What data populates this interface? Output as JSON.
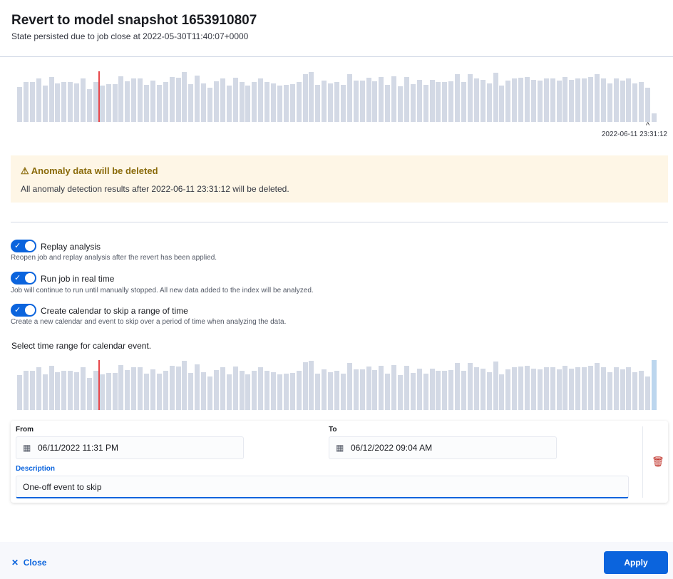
{
  "header": {
    "title": "Revert to model snapshot 1653910807",
    "subtitle": "State persisted due to job close at 2022-05-30T11:40:07+0000"
  },
  "chart": {
    "end_label": "2022-06-11 23:31:12",
    "bar_color": "#d3d9e5",
    "marker_color": "#e7474b",
    "selection_color": "#bcd6ee",
    "values": [
      71,
      80,
      80,
      87,
      73,
      91,
      78,
      80,
      80,
      78,
      87,
      66,
      80,
      73,
      76,
      76,
      92,
      82,
      87,
      87,
      75,
      83,
      75,
      80,
      91,
      89,
      100,
      76,
      94,
      78,
      69,
      82,
      87,
      73,
      89,
      80,
      73,
      80,
      87,
      80,
      78,
      73,
      75,
      76,
      80,
      97,
      100,
      75,
      83,
      78,
      80,
      75,
      96,
      83,
      83,
      89,
      82,
      91,
      75,
      92,
      72,
      91,
      76,
      85,
      75,
      85,
      80,
      80,
      82,
      96,
      80,
      96,
      87,
      85,
      78,
      99,
      73,
      83,
      87,
      89,
      91,
      85,
      83,
      87,
      87,
      83,
      91,
      85,
      87,
      87,
      91,
      96,
      87,
      78,
      87,
      83,
      87,
      78,
      80,
      69,
      17
    ],
    "marker_index": 13
  },
  "warning": {
    "icon": "warning-icon",
    "title": "Anomaly data will be deleted",
    "text": "All anomaly detection results after 2022-06-11 23:31:12 will be deleted."
  },
  "options": [
    {
      "label": "Replay analysis",
      "description": "Reopen job and replay analysis after the revert has been applied.",
      "on": true
    },
    {
      "label": "Run job in real time",
      "description": "Job will continue to run until manually stopped. All new data added to the index will be analyzed.",
      "on": true
    },
    {
      "label": "Create calendar to skip a range of time",
      "description": "Create a new calendar and event to skip over a period of time when analyzing the data.",
      "on": true
    }
  ],
  "calendar": {
    "prompt": "Select time range for calendar event.",
    "from_label": "From",
    "from_value": "06/11/2022 11:31 PM",
    "to_label": "To",
    "to_value": "06/12/2022 09:04 AM",
    "description_label": "Description",
    "description_value": "One-off event to skip"
  },
  "footer": {
    "close": "Close",
    "apply": "Apply"
  }
}
